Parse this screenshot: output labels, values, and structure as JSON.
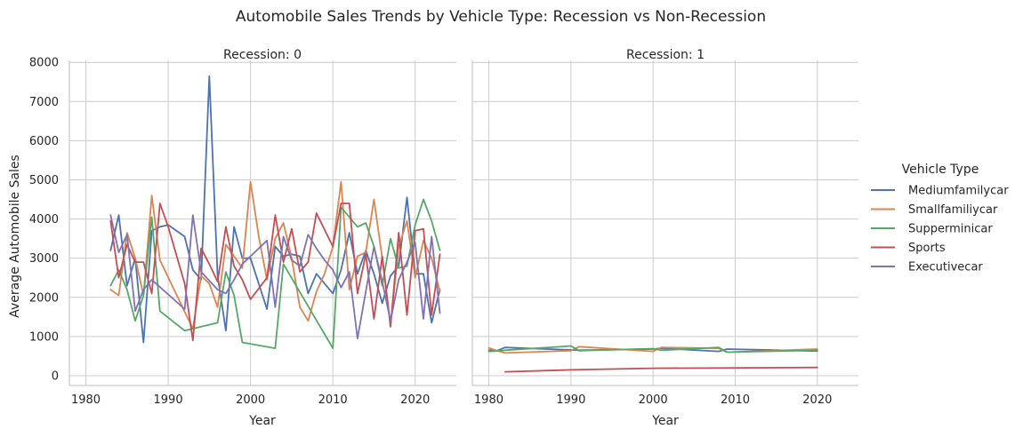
{
  "chart_data": {
    "type": "line",
    "title": "Automobile Sales Trends by Vehicle Type: Recession vs Non-Recession",
    "xlabel": "Year",
    "ylabel": "Average Automobile Sales",
    "xlim": [
      1978,
      2025
    ],
    "ylim": [
      -250,
      8050
    ],
    "xticks": [
      1980,
      1990,
      2000,
      2010,
      2020
    ],
    "yticks": [
      0,
      1000,
      2000,
      3000,
      4000,
      5000,
      6000,
      7000,
      8000
    ],
    "grid": true,
    "legend": {
      "title": "Vehicle Type",
      "placement": "right"
    },
    "colors": {
      "Mediumfamilycar": "#4c72b0",
      "Smallfamiliycar": "#dd8452",
      "Supperminicar": "#55a868",
      "Sports": "#c44e52",
      "Executivecar": "#8172b3"
    },
    "panels": [
      {
        "title": "Recession: 0",
        "series": [
          {
            "name": "Mediumfamilycar",
            "x": [
              1983,
              1984,
              1985,
              1986,
              1987,
              1988,
              1989,
              1990,
              1992,
              1993,
              1994,
              1995,
              1996,
              1997,
              1998,
              1999,
              2000,
              2002,
              2003,
              2004,
              2005,
              2006,
              2007,
              2008,
              2010,
              2011,
              2012,
              2013,
              2014,
              2015,
              2016,
              2017,
              2018,
              2019,
              2020,
              2021,
              2022,
              2023
            ],
            "y": [
              3200,
              4100,
              2300,
              3000,
              850,
              3700,
              3800,
              3850,
              3550,
              2700,
              2450,
              7650,
              2550,
              1150,
              3800,
              3000,
              3000,
              1700,
              3300,
              3050,
              3100,
              3050,
              2100,
              2600,
              2100,
              2700,
              3650,
              2600,
              3200,
              2600,
              1850,
              2550,
              2800,
              4550,
              2600,
              2600,
              1350,
              2200
            ]
          },
          {
            "name": "Smallfamiliycar",
            "x": [
              1983,
              1984,
              1985,
              1986,
              1987,
              1988,
              1989,
              1993,
              1994,
              1995,
              1996,
              1997,
              1999,
              2000,
              2001,
              2002,
              2003,
              2004,
              2005,
              2006,
              2007,
              2008,
              2009,
              2010,
              2011,
              2012,
              2013,
              2014,
              2015,
              2016,
              2017,
              2018,
              2019,
              2020,
              2021,
              2022,
              2023
            ],
            "y": [
              2200,
              2050,
              3650,
              3000,
              2050,
              4600,
              2950,
              1200,
              2550,
              2350,
              1750,
              3350,
              2750,
              4950,
              3550,
              2450,
              3500,
              3900,
              3000,
              1750,
              1400,
              2150,
              2600,
              3300,
              4950,
              2200,
              3050,
              3150,
              4500,
              3000,
              1300,
              3300,
              3950,
              2500,
              3450,
              3000,
              2150
            ]
          },
          {
            "name": "Supperminicar",
            "x": [
              1983,
              1984,
              1985,
              1986,
              1987,
              1988,
              1989,
              1992,
              1996,
              1997,
              1998,
              1999,
              2003,
              2004,
              2010,
              2011,
              2012,
              2013,
              2014,
              2015,
              2016,
              2017,
              2018,
              2019,
              2020,
              2021,
              2022,
              2023
            ],
            "y": [
              2300,
              2700,
              2200,
              1400,
              2050,
              4050,
              1650,
              1150,
              1350,
              2650,
              2050,
              850,
              700,
              2850,
              700,
              4300,
              4050,
              3800,
              3900,
              3300,
              2300,
              3500,
              2750,
              2800,
              3850,
              4500,
              3950,
              3200
            ]
          },
          {
            "name": "Sports",
            "x": [
              1983,
              1984,
              1985,
              1986,
              1987,
              1988,
              1989,
              1990,
              1992,
              1993,
              1994,
              1995,
              1996,
              1997,
              1998,
              1999,
              2000,
              2002,
              2003,
              2004,
              2005,
              2006,
              2007,
              2008,
              2010,
              2011,
              2012,
              2013,
              2014,
              2015,
              2016,
              2017,
              2018,
              2019,
              2020,
              2021,
              2022,
              2023
            ],
            "y": [
              3950,
              2500,
              3350,
              2900,
              2900,
              2100,
              4400,
              3800,
              2350,
              900,
              3250,
              2850,
              2400,
              3800,
              2800,
              2450,
              1950,
              2500,
              4100,
              2900,
              3750,
              2650,
              2900,
              4150,
              3300,
              4400,
              4400,
              2100,
              3100,
              1450,
              3050,
              1250,
              3650,
              1550,
              3700,
              3750,
              1550,
              3100
            ]
          },
          {
            "name": "Executivecar",
            "x": [
              1983,
              1984,
              1985,
              1986,
              1987,
              1988,
              1992,
              1993,
              1994,
              1996,
              1997,
              1998,
              1999,
              2000,
              2001,
              2002,
              2003,
              2004,
              2005,
              2006,
              2007,
              2008,
              2009,
              2010,
              2011,
              2012,
              2013,
              2014,
              2015,
              2016,
              2017,
              2018,
              2019,
              2020,
              2021,
              2022,
              2023
            ],
            "y": [
              4100,
              3150,
              3600,
              1650,
              2200,
              2450,
              1700,
              4100,
              2650,
              2200,
              2100,
              2450,
              2850,
              3050,
              3250,
              3450,
              1750,
              3550,
              2950,
              2800,
              3600,
              3250,
              2950,
              2700,
              2250,
              2650,
              950,
              2150,
              3300,
              2400,
              1400,
              2450,
              2900,
              3400,
              1450,
              3550,
              1600
            ]
          }
        ]
      },
      {
        "title": "Recession: 1",
        "series": [
          {
            "name": "Mediumfamilycar",
            "x": [
              1980,
              1981,
              1982,
              1991,
              2000,
              2001,
              2008,
              2009,
              2020
            ],
            "y": [
              650,
              640,
              720,
              650,
              680,
              700,
              620,
              680,
              630
            ]
          },
          {
            "name": "Smallfamiliycar",
            "x": [
              1980,
              1981,
              1982,
              1990,
              1991,
              2000,
              2001,
              2008,
              2009,
              2020
            ],
            "y": [
              710,
              640,
              580,
              640,
              740,
              620,
              720,
              700,
              600,
              680
            ]
          },
          {
            "name": "Supperminicar",
            "x": [
              1980,
              1981,
              1982,
              1990,
              1991,
              2000,
              2001,
              2008,
              2009,
              2020
            ],
            "y": [
              620,
              630,
              650,
              760,
              640,
              690,
              650,
              720,
              600,
              650
            ]
          },
          {
            "name": "Sports",
            "x": [
              1982,
              1990,
              2000,
              2020
            ],
            "y": [
              100,
              150,
              190,
              210
            ]
          }
        ]
      }
    ]
  }
}
